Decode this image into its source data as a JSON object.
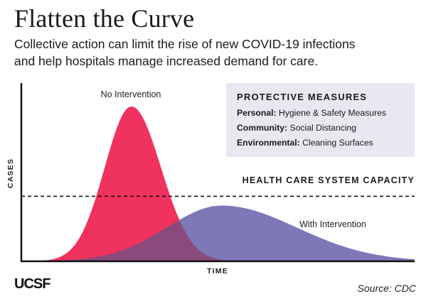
{
  "title": "Flatten the Curve",
  "subtitle_line1": "Collective action can limit the rise of new COVID-19 infections",
  "subtitle_line2": "and help hospitals manage increased demand for care.",
  "chart_data": {
    "type": "area",
    "xlabel": "TIME",
    "ylabel": "CASES",
    "grid": false,
    "series": [
      {
        "name": "No Intervention",
        "color": "#f0325f",
        "peak_position": 0.28,
        "peak_height": 1.0
      },
      {
        "name": "With Intervention",
        "color": "#7e78b9",
        "peak_position": 0.51,
        "peak_height": 0.36
      }
    ],
    "reference_line": {
      "label": "HEALTH CARE SYSTEM CAPACITY",
      "value": 0.42
    }
  },
  "measures": {
    "heading": "PROTECTIVE MEASURES",
    "items": [
      {
        "label": "Personal:",
        "text": " Hygiene & Safety Measures"
      },
      {
        "label": "Community:",
        "text": " Social Distancing"
      },
      {
        "label": "Environmental:",
        "text": " Cleaning Surfaces"
      }
    ]
  },
  "logo": "UCSF",
  "source": "Source: CDC",
  "colors": {
    "no_intervention": "#f0325f",
    "with_intervention": "#7e78b9",
    "overlap": "#8a4a7c",
    "box_bg": "#e7e8f0"
  }
}
